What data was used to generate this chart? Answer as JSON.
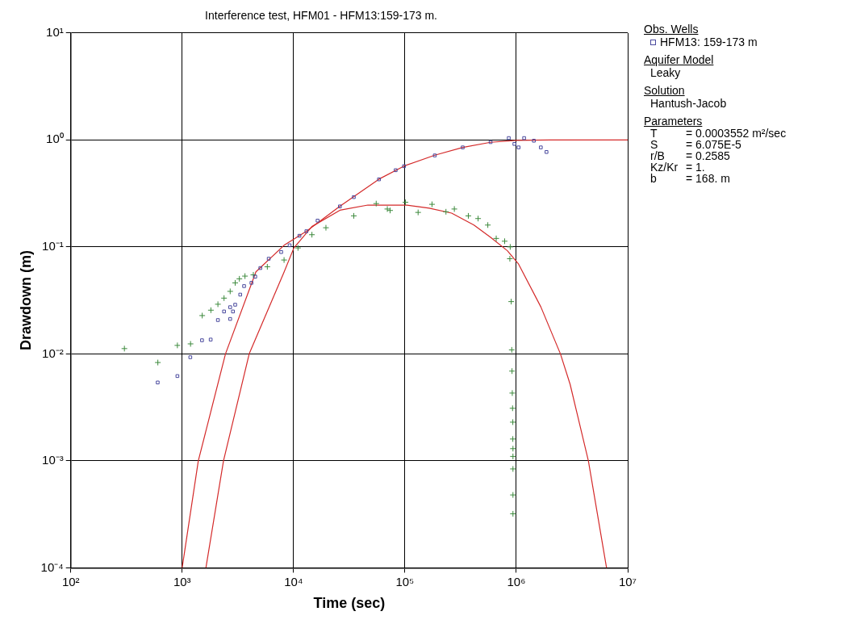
{
  "chart_data": {
    "type": "scatter",
    "title": "Interference test, HFM01 - HFM13:159-173 m.",
    "xlabel": "Time (sec)",
    "ylabel": "Drawdown (m)",
    "legend_title": "Obs. Wells",
    "legend": "right",
    "grid": true,
    "log": "xy",
    "xlim": [
      100,
      10000000
    ],
    "ylim": [
      0.0001,
      10
    ],
    "xticks": [
      {
        "value": 100,
        "label": "10²"
      },
      {
        "value": 1000,
        "label": "10³"
      },
      {
        "value": 10000,
        "label": "10⁴"
      },
      {
        "value": 100000,
        "label": "10⁵"
      },
      {
        "value": 1000000,
        "label": "10⁶"
      },
      {
        "value": 10000000,
        "label": "10⁷"
      }
    ],
    "yticks": [
      {
        "value": 0.0001,
        "label": "10⁻⁴"
      },
      {
        "value": 0.001,
        "label": "10⁻³"
      },
      {
        "value": 0.01,
        "label": "10⁻²"
      },
      {
        "value": 0.1,
        "label": "10⁻¹"
      },
      {
        "value": 1,
        "label": "10⁰"
      },
      {
        "value": 10,
        "label": "10¹"
      }
    ],
    "annotations": [
      "Aquifer Model",
      "Leaky",
      "Solution",
      "Hantush-Jacob",
      "Parameters",
      "T = 0.0003552 m²/sec",
      "S = 6.075E-5",
      "r/B = 0.2585",
      "Kz/Kr = 1.",
      "b = 168. m"
    ],
    "series": [
      {
        "name": "HFM13: 159-173 m",
        "type": "scatter",
        "marker": "square",
        "color": "#4a4a9e",
        "x": [
          603,
          906,
          1183,
          1507,
          1803,
          2094,
          2698,
          2377,
          2858,
          2698,
          2993,
          3321,
          3597,
          4188,
          4530,
          5033,
          5984,
          7745,
          9220,
          11290,
          13040,
          16440,
          26060,
          34750,
          58480,
          82600,
          98200,
          185400,
          330300,
          587500,
          855400,
          961000,
          1048000,
          1175000,
          1437000,
          1660000,
          1866000
        ],
        "values": [
          0.0054,
          0.0062,
          0.0093,
          0.0134,
          0.0136,
          0.0207,
          0.0212,
          0.0249,
          0.0249,
          0.0273,
          0.0288,
          0.0358,
          0.043,
          0.0461,
          0.0527,
          0.0634,
          0.0775,
          0.0895,
          0.1035,
          0.127,
          0.14,
          0.176,
          0.239,
          0.292,
          0.428,
          0.521,
          0.568,
          0.716,
          0.851,
          0.954,
          1.04,
          0.917,
          0.851,
          1.04,
          0.983,
          0.851,
          0.771
        ]
      },
      {
        "type": "scatter",
        "marker": "cross",
        "color": "#3d8a3d",
        "x": [
          303,
          605,
          906,
          1189,
          1514,
          1811,
          2094,
          2377,
          2698,
          2993,
          3263,
          3664,
          4355,
          5815,
          8220,
          10960,
          14620,
          19530,
          34750,
          55200,
          69500,
          73600,
          101100,
          131300,
          175000,
          233500,
          277700,
          370900,
          453900,
          554800,
          660000,
          785700,
          881600,
          875000,
          900000,
          910000,
          915000,
          920000,
          925000,
          930000,
          930000,
          933000,
          933000,
          933000,
          933000,
          933000
        ],
        "values": [
          0.0112,
          0.0083,
          0.012,
          0.0124,
          0.0228,
          0.0256,
          0.0291,
          0.0332,
          0.0384,
          0.0461,
          0.0503,
          0.0533,
          0.0548,
          0.0652,
          0.0754,
          0.0978,
          0.13,
          0.151,
          0.195,
          0.254,
          0.226,
          0.219,
          0.261,
          0.21,
          0.25,
          0.213,
          0.226,
          0.195,
          0.184,
          0.16,
          0.12,
          0.113,
          0.1,
          0.0775,
          0.0308,
          0.0109,
          0.0069,
          0.0043,
          0.0031,
          0.0023,
          0.0016,
          0.0013,
          0.0011,
          0.00084,
          0.00048,
          0.00032
        ]
      },
      {
        "type": "line",
        "marker": "none",
        "color": "#d42a2a",
        "x": [
          1000,
          1396,
          2449,
          4592,
          8222,
          13040,
          26060,
          58480,
          98200,
          185400,
          330300,
          587500,
          1000000,
          2000000,
          10000000
        ],
        "values": [
          0.0001,
          0.001,
          0.01,
          0.0585,
          0.1035,
          0.14,
          0.24,
          0.43,
          0.57,
          0.72,
          0.85,
          0.95,
          0.99,
          1.0,
          1.0
        ]
      },
      {
        "type": "line",
        "marker": "none",
        "color": "#d42a2a",
        "x": [
          1634,
          2350,
          3998,
          8222,
          10070,
          14620,
          26060,
          46450,
          104000,
          165200,
          262400,
          415900,
          587500,
          831800,
          1048000,
          1660000,
          2489000,
          3040000,
          4436000,
          6457000
        ],
        "values": [
          0.0001,
          0.001,
          0.01,
          0.0582,
          0.0978,
          0.155,
          0.22,
          0.246,
          0.246,
          0.23,
          0.207,
          0.16,
          0.123,
          0.092,
          0.069,
          0.0275,
          0.01,
          0.0052,
          0.001,
          0.0001
        ]
      }
    ]
  }
}
